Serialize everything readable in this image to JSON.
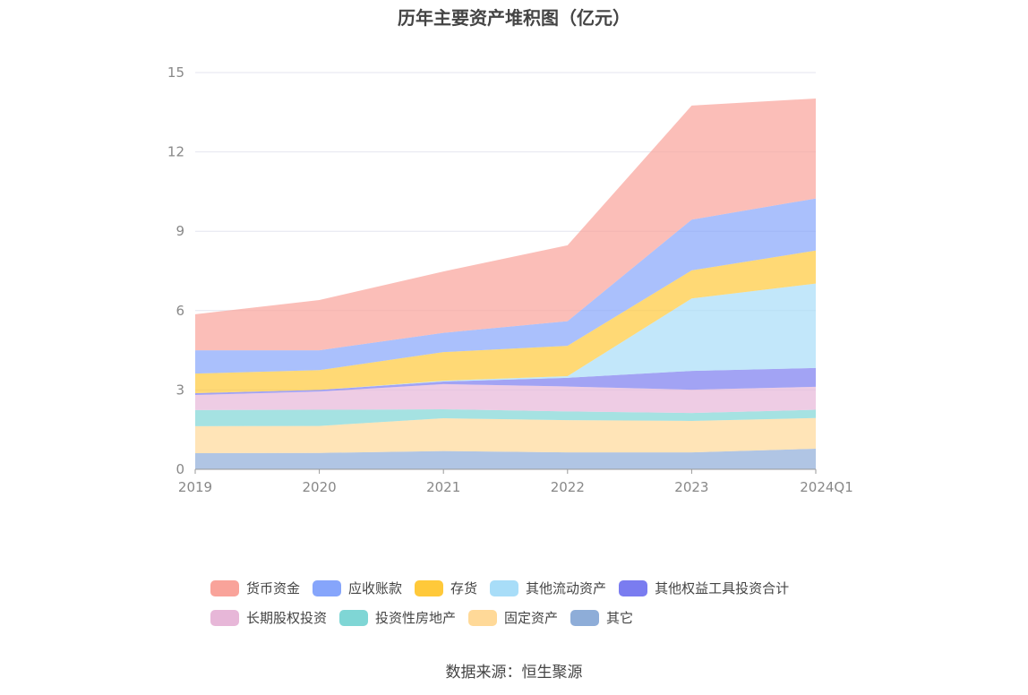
{
  "chart_data": {
    "type": "area",
    "stacked": true,
    "title": "历年主要资产堆积图（亿元）",
    "categories": [
      "2019",
      "2020",
      "2021",
      "2022",
      "2023",
      "2024Q1"
    ],
    "ylim": [
      0,
      15
    ],
    "yticks": [
      0,
      3,
      6,
      9,
      12,
      15
    ],
    "grid": true,
    "legend_position": "bottom",
    "series": [
      {
        "name": "货币资金",
        "color": "#f9a39a",
        "values": [
          1.36,
          1.9,
          2.32,
          2.87,
          4.31,
          3.78
        ]
      },
      {
        "name": "应收账款",
        "color": "#86a5fb",
        "values": [
          0.88,
          0.75,
          0.73,
          0.93,
          1.92,
          1.97
        ]
      },
      {
        "name": "存货",
        "color": "#ffc93a",
        "values": [
          0.74,
          0.75,
          1.08,
          1.15,
          1.06,
          1.25
        ]
      },
      {
        "name": "其他流动资产",
        "color": "#a8ddf8",
        "values": [
          0,
          0,
          0.03,
          0.06,
          2.74,
          3.19
        ]
      },
      {
        "name": "其他权益工具投资合计",
        "color": "#7a7cf0",
        "values": [
          0.07,
          0.06,
          0.1,
          0.33,
          0.71,
          0.71
        ]
      },
      {
        "name": "长期股权投资",
        "color": "#e7b7d8",
        "values": [
          0.57,
          0.69,
          0.95,
          0.94,
          0.88,
          0.87
        ]
      },
      {
        "name": "投资性房地产",
        "color": "#7fd6d5",
        "values": [
          0.61,
          0.61,
          0.34,
          0.33,
          0.3,
          0.31
        ]
      },
      {
        "name": "固定资产",
        "color": "#ffd998",
        "values": [
          1.02,
          1.02,
          1.24,
          1.22,
          1.19,
          1.16
        ]
      },
      {
        "name": "其它",
        "color": "#8eadd8",
        "values": [
          0.61,
          0.62,
          0.69,
          0.64,
          0.64,
          0.78
        ]
      }
    ]
  },
  "source": "数据来源：恒生聚源"
}
